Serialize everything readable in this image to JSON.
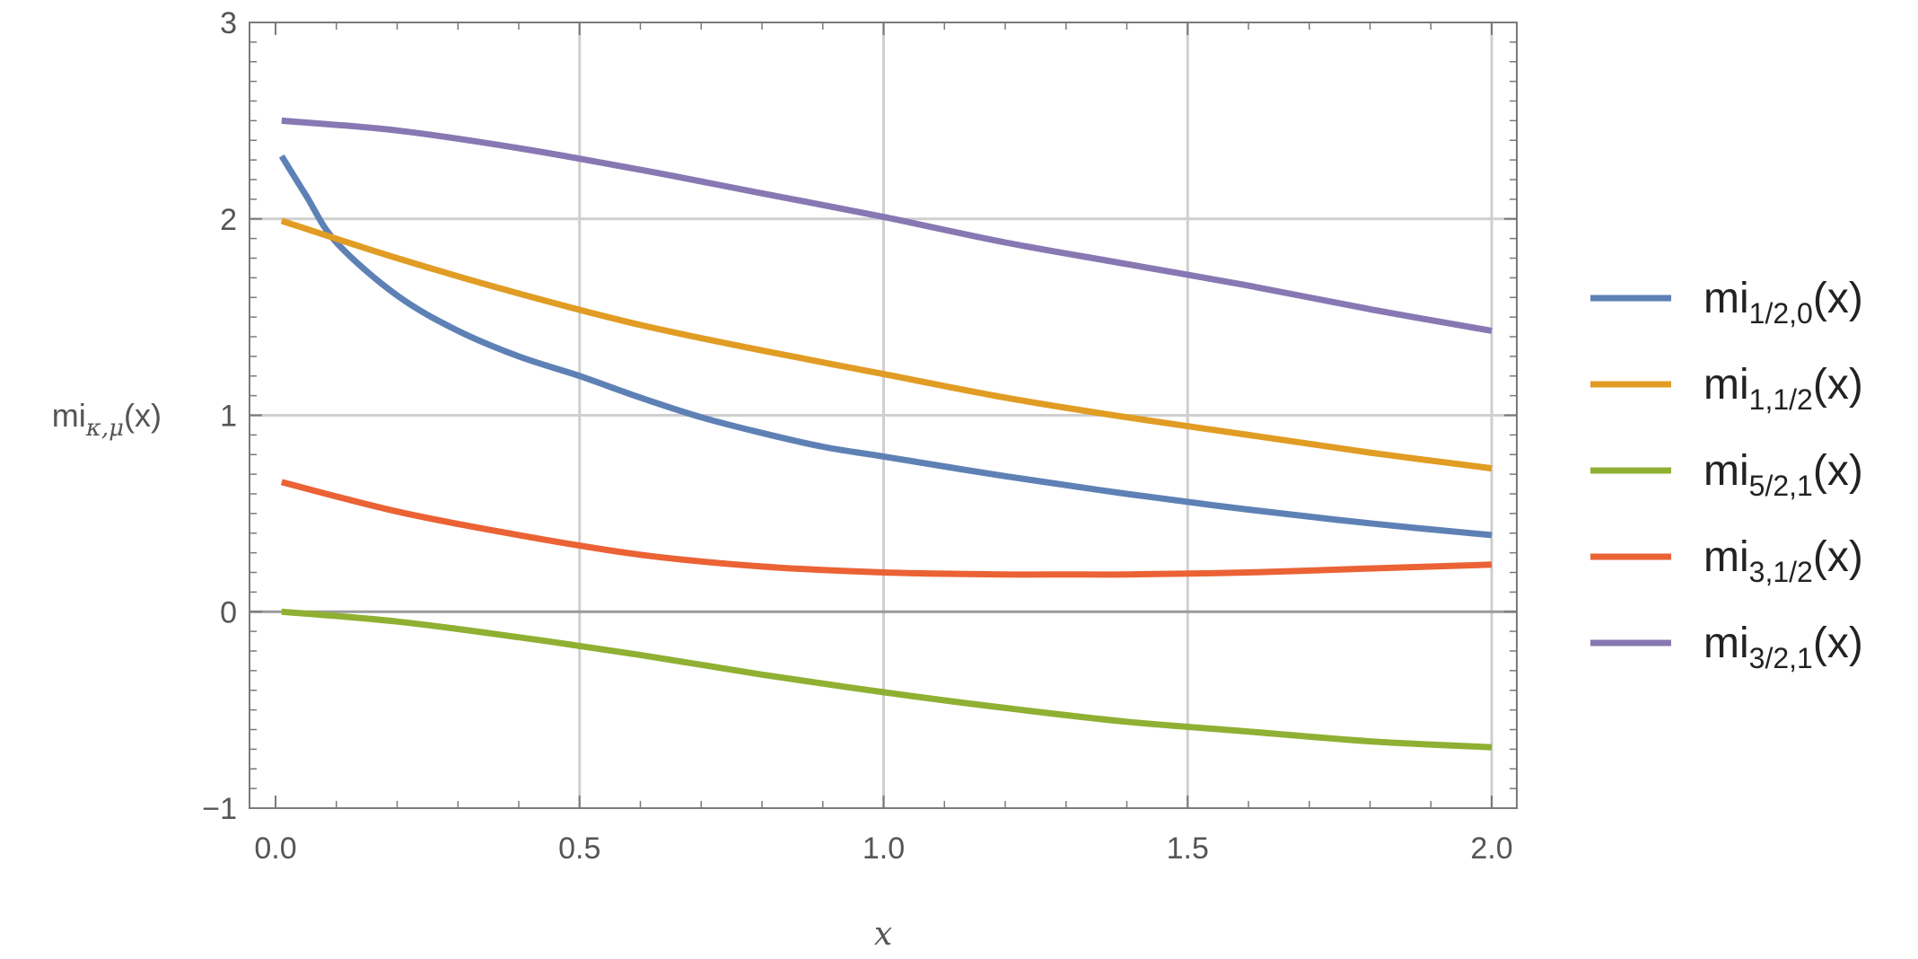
{
  "chart_data": {
    "type": "line",
    "xlabel": "x",
    "ylabel": {
      "base": "mi",
      "sub": "κ,μ",
      "tail": "(x)"
    },
    "xlim": [
      0,
      2
    ],
    "ylim": [
      -1,
      3
    ],
    "x_ticks": [
      "0.0",
      "0.5",
      "1.0",
      "1.5",
      "2.0"
    ],
    "y_ticks": [
      "−1",
      "0",
      "1",
      "2",
      "3"
    ],
    "grid": true,
    "legend_position": "right",
    "series": [
      {
        "name": "mi1/2,0(x)",
        "label": {
          "base": "mi",
          "sub": "1/2,0",
          "tail": "(x)"
        },
        "color": "#5E81B5",
        "x": [
          0.01,
          0.05,
          0.1,
          0.2,
          0.3,
          0.4,
          0.5,
          0.6,
          0.7,
          0.8,
          0.9,
          1.0,
          1.2,
          1.4,
          1.6,
          1.8,
          2.0
        ],
        "y": [
          2.32,
          2.12,
          1.88,
          1.61,
          1.43,
          1.3,
          1.2,
          1.09,
          0.99,
          0.91,
          0.84,
          0.79,
          0.69,
          0.6,
          0.52,
          0.45,
          0.39
        ]
      },
      {
        "name": "mi1,1/2(x)",
        "label": {
          "base": "mi",
          "sub": "1,1/2",
          "tail": "(x)"
        },
        "color": "#E19C24",
        "x": [
          0.01,
          0.2,
          0.4,
          0.6,
          0.8,
          1.0,
          1.2,
          1.4,
          1.6,
          1.8,
          2.0
        ],
        "y": [
          1.99,
          1.8,
          1.62,
          1.46,
          1.33,
          1.21,
          1.09,
          0.99,
          0.9,
          0.81,
          0.73
        ]
      },
      {
        "name": "mi5/2,1(x)",
        "label": {
          "base": "mi",
          "sub": "5/2,1",
          "tail": "(x)"
        },
        "color": "#8FB032",
        "x": [
          0.01,
          0.2,
          0.4,
          0.6,
          0.8,
          1.0,
          1.2,
          1.4,
          1.6,
          1.8,
          2.0
        ],
        "y": [
          0.0,
          -0.05,
          -0.13,
          -0.22,
          -0.32,
          -0.41,
          -0.49,
          -0.56,
          -0.61,
          -0.66,
          -0.69
        ]
      },
      {
        "name": "mi3,1/2(x)",
        "label": {
          "base": "mi",
          "sub": "3,1/2",
          "tail": "(x)"
        },
        "color": "#EB6235",
        "x": [
          0.01,
          0.2,
          0.4,
          0.6,
          0.8,
          1.0,
          1.2,
          1.3,
          1.4,
          1.6,
          1.8,
          2.0
        ],
        "y": [
          0.66,
          0.51,
          0.39,
          0.29,
          0.23,
          0.2,
          0.19,
          0.19,
          0.19,
          0.2,
          0.22,
          0.24
        ]
      },
      {
        "name": "mi3/2,1(x)",
        "label": {
          "base": "mi",
          "sub": "3/2,1",
          "tail": "(x)"
        },
        "color": "#8778B3",
        "x": [
          0.01,
          0.2,
          0.4,
          0.6,
          0.8,
          1.0,
          1.2,
          1.4,
          1.6,
          1.8,
          2.0
        ],
        "y": [
          2.5,
          2.45,
          2.36,
          2.25,
          2.13,
          2.01,
          1.88,
          1.77,
          1.66,
          1.54,
          1.43
        ]
      }
    ]
  }
}
